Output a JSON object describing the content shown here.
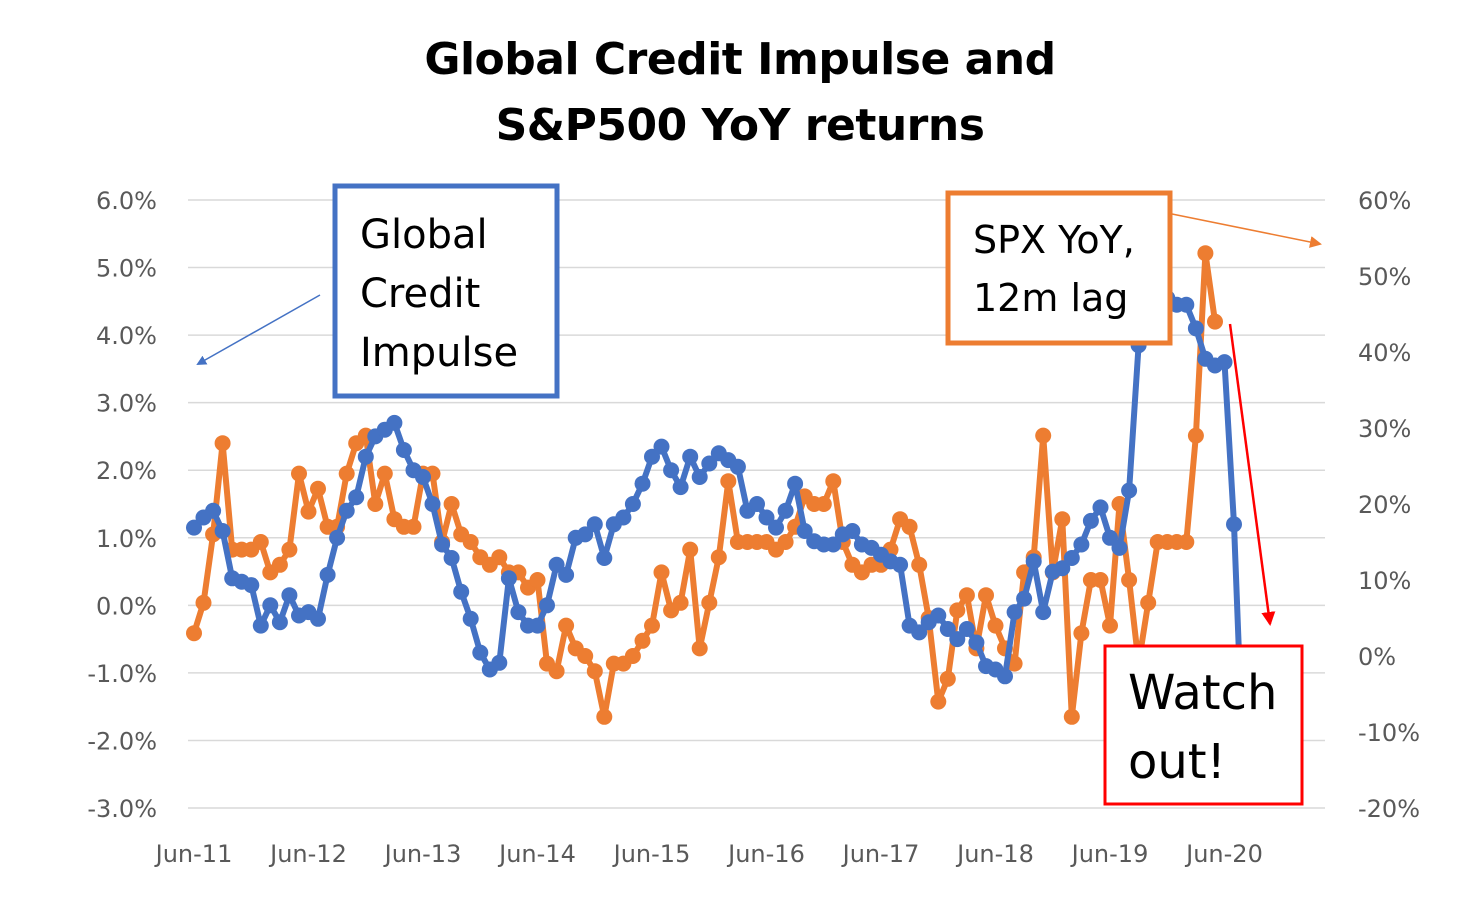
{
  "chart_data": {
    "type": "line",
    "title": [
      "Global Credit Impulse and",
      "S&P500 YoY returns"
    ],
    "x_labels": [
      "Jun-11",
      "Jun-12",
      "Jun-13",
      "Jun-14",
      "Jun-15",
      "Jun-16",
      "Jun-17",
      "Jun-18",
      "Jun-19",
      "Jun-20"
    ],
    "left_axis": {
      "min": -3.0,
      "max": 6.0,
      "step": 1.0,
      "tick_labels": [
        "6.0%",
        "5.0%",
        "4.0%",
        "3.0%",
        "2.0%",
        "1.0%",
        "0.0%",
        "-1.0%",
        "-2.0%",
        "-3.0%"
      ]
    },
    "right_axis": {
      "min": -20,
      "max": 60,
      "step": 10,
      "tick_labels": [
        "60%",
        "50%",
        "40%",
        "30%",
        "20%",
        "10%",
        "0%",
        "-10%",
        "-20%"
      ]
    },
    "grid": true,
    "series": [
      {
        "name": "Global Credit Impulse",
        "axis": "left",
        "color": "#4472C4",
        "start": "Jun-11",
        "values": [
          1.15,
          1.3,
          1.4,
          1.1,
          0.4,
          0.35,
          0.3,
          -0.3,
          0.0,
          -0.25,
          0.15,
          -0.15,
          -0.1,
          -0.2,
          0.45,
          1.0,
          1.4,
          1.6,
          2.2,
          2.5,
          2.6,
          2.7,
          2.3,
          2.0,
          1.9,
          1.5,
          0.9,
          0.7,
          0.2,
          -0.2,
          -0.7,
          -0.95,
          -0.85,
          0.4,
          -0.1,
          -0.3,
          -0.3,
          0.0,
          0.6,
          0.45,
          1.0,
          1.05,
          1.2,
          0.7,
          1.2,
          1.3,
          1.5,
          1.8,
          2.2,
          2.35,
          2.0,
          1.75,
          2.2,
          1.9,
          2.1,
          2.25,
          2.15,
          2.05,
          1.4,
          1.5,
          1.3,
          1.15,
          1.4,
          1.8,
          1.1,
          0.95,
          0.9,
          0.9,
          1.05,
          1.1,
          0.9,
          0.85,
          0.75,
          0.65,
          0.6,
          -0.3,
          -0.4,
          -0.25,
          -0.15,
          -0.35,
          -0.5,
          -0.35,
          -0.55,
          -0.9,
          -0.95,
          -1.05,
          -0.1,
          0.1,
          0.65,
          -0.1,
          0.5,
          0.55,
          0.7,
          0.9,
          1.25,
          1.45,
          1.0,
          0.85,
          1.7,
          3.85,
          4.55,
          4.7,
          4.55,
          4.45,
          4.45,
          4.1,
          3.65,
          3.55,
          3.6,
          1.2,
          -2.5
        ]
      },
      {
        "name": "SPX YoY, 12m lag",
        "axis": "right",
        "color": "#ED7D31",
        "start": "Jun-11",
        "values": [
          3,
          7,
          16,
          28,
          14,
          14,
          14,
          15,
          11,
          12,
          14,
          24,
          19,
          22,
          17,
          17,
          24,
          28,
          29,
          20,
          24,
          18,
          17,
          17,
          24,
          24,
          15,
          20,
          16,
          15,
          13,
          12,
          13,
          11,
          11,
          9,
          10,
          -1,
          -2,
          4,
          1,
          0,
          -2,
          -8,
          -1,
          -1,
          0,
          2,
          4,
          11,
          6,
          7,
          14,
          1,
          7,
          13,
          23,
          15,
          15,
          15,
          15,
          14,
          15,
          17,
          21,
          20,
          20,
          23,
          15,
          12,
          11,
          12,
          12,
          14,
          18,
          17,
          12,
          5,
          -6,
          -3,
          6,
          8,
          1,
          8,
          4,
          1,
          -1,
          11,
          13,
          29,
          11,
          18,
          -8,
          3,
          10,
          10,
          4,
          20,
          10,
          -1,
          7,
          15,
          15,
          15,
          15,
          29,
          53,
          44
        ]
      }
    ]
  },
  "annotations": {
    "gci_box": [
      "Global",
      "Credit",
      "Impulse"
    ],
    "spx_box": [
      "SPX YoY,",
      "12m lag"
    ],
    "watch_box": [
      "Watch",
      "out!"
    ]
  }
}
